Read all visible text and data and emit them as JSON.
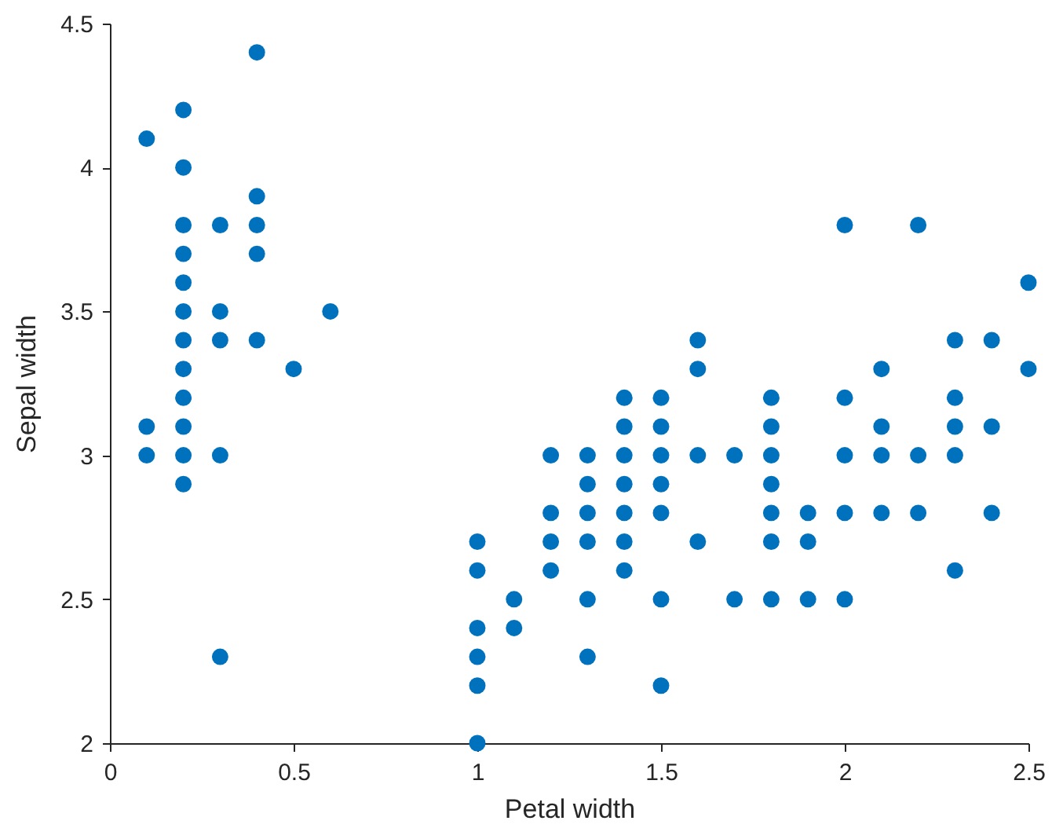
{
  "chart_data": {
    "type": "scatter",
    "xlabel": "Petal width",
    "ylabel": "Sepal width",
    "x": [
      0.1,
      0.1,
      0.1,
      0.2,
      0.2,
      0.2,
      0.2,
      0.2,
      0.2,
      0.2,
      0.2,
      0.2,
      0.2,
      0.2,
      0.2,
      0.3,
      0.3,
      0.3,
      0.3,
      0.3,
      0.4,
      0.4,
      0.4,
      0.4,
      0.4,
      0.5,
      0.6,
      1.0,
      1.0,
      1.0,
      1.0,
      1.0,
      1.0,
      1.1,
      1.1,
      1.2,
      1.2,
      1.2,
      1.2,
      1.3,
      1.3,
      1.3,
      1.3,
      1.3,
      1.3,
      1.4,
      1.4,
      1.4,
      1.4,
      1.4,
      1.4,
      1.4,
      1.5,
      1.5,
      1.5,
      1.5,
      1.5,
      1.5,
      1.5,
      1.6,
      1.6,
      1.6,
      1.6,
      1.7,
      1.7,
      1.8,
      1.8,
      1.8,
      1.8,
      1.8,
      1.8,
      1.8,
      1.9,
      1.9,
      1.9,
      2.0,
      2.0,
      2.0,
      2.0,
      2.0,
      2.1,
      2.1,
      2.1,
      2.1,
      2.2,
      2.2,
      2.2,
      2.3,
      2.3,
      2.3,
      2.3,
      2.3,
      2.4,
      2.4,
      2.4,
      2.5,
      2.5
    ],
    "series": [
      {
        "color": "#0072bd",
        "values": [
          3.1,
          3.0,
          4.1,
          3.5,
          3.0,
          3.2,
          3.1,
          3.6,
          3.4,
          2.9,
          3.7,
          4.0,
          4.2,
          3.3,
          3.8,
          3.4,
          3.5,
          3.8,
          2.3,
          3.0,
          3.9,
          4.4,
          3.7,
          3.4,
          3.8,
          3.3,
          3.5,
          2.4,
          2.0,
          2.2,
          2.7,
          2.6,
          2.3,
          2.5,
          2.4,
          2.8,
          2.7,
          2.6,
          3.0,
          2.3,
          2.8,
          2.9,
          2.5,
          3.0,
          2.7,
          3.2,
          2.7,
          2.9,
          3.1,
          3.0,
          2.8,
          2.6,
          3.2,
          3.1,
          2.8,
          3.0,
          2.2,
          2.5,
          2.9,
          3.3,
          2.7,
          3.4,
          3.0,
          3.0,
          2.5,
          2.9,
          2.5,
          3.2,
          3.0,
          2.7,
          2.8,
          3.1,
          2.7,
          2.8,
          2.5,
          3.2,
          2.5,
          2.8,
          3.8,
          3.0,
          3.0,
          3.3,
          2.8,
          3.1,
          3.0,
          3.8,
          2.8,
          3.2,
          2.6,
          3.0,
          3.1,
          3.4,
          2.8,
          3.4,
          3.1,
          3.3,
          3.6
        ]
      }
    ],
    "xlim": [
      0,
      2.5
    ],
    "xticks": [
      0,
      0.5,
      1,
      1.5,
      2,
      2.5
    ],
    "ylim": [
      2,
      4.5
    ],
    "yticks": [
      2,
      2.5,
      3,
      3.5,
      4,
      4.5
    ],
    "grid": false,
    "marker": "circle"
  }
}
